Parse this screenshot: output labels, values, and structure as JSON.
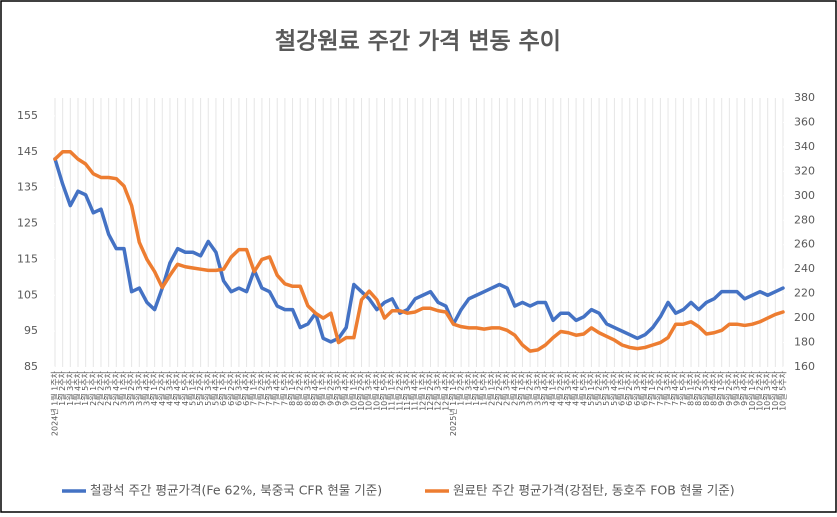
{
  "chart_data": {
    "type": "line",
    "title": "철강원료 주간 가격 변동 추이",
    "categories": [
      "2024년 1월 1주차",
      "1월 2주차",
      "1월 3주차",
      "1월 4주차",
      "1월 5주차",
      "2월 1주차",
      "2월 2주차",
      "2월 3주차",
      "2월 4주차",
      "3월 1주차",
      "3월 2주차",
      "3월 3주차",
      "3월 4주차",
      "4월 1주차",
      "4월 2주차",
      "4월 3주차",
      "4월 4주차",
      "4월 5주차",
      "5월 1주차",
      "5월 2주차",
      "5월 3주차",
      "5월 4주차",
      "6월 1주차",
      "6월 2주차",
      "6월 3주차",
      "6월 4주차",
      "7월 1주차",
      "7월 2주차",
      "7월 3주차",
      "7월 4주차",
      "7월 5주차",
      "8월 1주차",
      "8월 2주차",
      "8월 3주차",
      "8월 4주차",
      "9월 1주차",
      "9월 2주차",
      "9월 3주차",
      "9월 4주차",
      "10월 1주차",
      "10월 2주차",
      "10월 3주차",
      "10월 4주차",
      "10월 5주차",
      "11월 1주차",
      "11월 2주차",
      "11월 3주차",
      "11월 4주차",
      "12월 1주차",
      "12월 2주차",
      "12월 3주차",
      "12월 4주차",
      "2025년 1월 1주차",
      "1월 2주차",
      "1월 3주차",
      "1월 4주차",
      "1월 5주차",
      "2월 1주차",
      "2월 2주차",
      "2월 3주차",
      "2월 4주차",
      "3월 1주차",
      "3월 2주차",
      "3월 3주차",
      "3월 4주차",
      "4월 1주차",
      "4월 2주차",
      "4월 3주차",
      "4월 4주차",
      "4월 5주차",
      "5월 1주차",
      "5월 2주차",
      "5월 3주차",
      "5월 4주차",
      "6월 1주차",
      "6월 2주차",
      "6월 3주차",
      "6월 4주차",
      "7월 1주차",
      "7월 2주차",
      "7월 3주차",
      "7월 4주차",
      "7월 5주차",
      "8월 1주차",
      "8월 2주차",
      "8월 3주차",
      "8월 4주차",
      "9월 1주차",
      "9월 2주차",
      "9월 3주차",
      "9월 4주차",
      "10월 1주차",
      "10월 2주차",
      "10월 3주차",
      "10월 4주차",
      "10월 5주차"
    ],
    "series": [
      {
        "name": "철광석 주간 평균가격(Fe 62%, 북중국 CFR 현물 기준)",
        "color": "#4472c4",
        "axis": "y",
        "values": [
          143,
          136,
          130,
          134,
          133,
          128,
          129,
          122,
          118,
          118,
          106,
          107,
          103,
          101,
          107,
          114,
          118,
          117,
          117,
          116,
          120,
          117,
          109,
          106,
          107,
          106,
          112,
          107,
          106,
          102,
          101,
          101,
          96,
          97,
          100,
          93,
          92,
          93,
          96,
          108,
          106,
          104,
          101,
          103,
          104,
          100,
          101,
          104,
          105,
          106,
          103,
          102,
          97,
          101,
          104,
          105,
          106,
          107,
          108,
          107,
          102,
          103,
          102,
          103,
          103,
          98,
          100,
          100,
          98,
          99,
          101,
          100,
          97,
          96,
          95,
          94,
          93,
          94,
          96,
          99,
          103,
          100,
          101,
          103,
          101,
          103,
          104,
          106,
          106,
          106,
          104,
          105,
          106,
          105,
          106,
          107
        ]
      },
      {
        "name": "원료탄 주간 평균가격(강점탄, 동호주 FOB 현물 기준)",
        "color": "#ed7d31",
        "axis": "y2",
        "values": [
          330,
          336,
          336,
          330,
          326,
          318,
          315,
          315,
          314,
          308,
          292,
          262,
          248,
          238,
          225,
          235,
          244,
          242,
          241,
          240,
          239,
          239,
          240,
          250,
          256,
          256,
          238,
          248,
          250,
          235,
          228,
          226,
          226,
          210,
          204,
          200,
          204,
          180,
          184,
          184,
          215,
          222,
          215,
          200,
          206,
          206,
          204,
          205,
          208,
          208,
          206,
          205,
          195,
          193,
          192,
          192,
          191,
          192,
          192,
          190,
          186,
          178,
          173,
          174,
          178,
          184,
          189,
          188,
          186,
          187,
          192,
          188,
          185,
          182,
          178,
          176,
          175,
          176,
          178,
          180,
          184,
          195,
          195,
          197,
          193,
          187,
          188,
          190,
          195,
          195,
          194,
          195,
          197,
          200,
          203,
          205
        ]
      }
    ],
    "ylim": [
      85,
      160
    ],
    "yticks": [
      85,
      95,
      105,
      115,
      125,
      135,
      145,
      155
    ],
    "y2lim": [
      160,
      380
    ],
    "y2ticks": [
      160,
      180,
      200,
      220,
      240,
      260,
      280,
      300,
      320,
      340,
      360,
      380
    ],
    "grid": true
  }
}
